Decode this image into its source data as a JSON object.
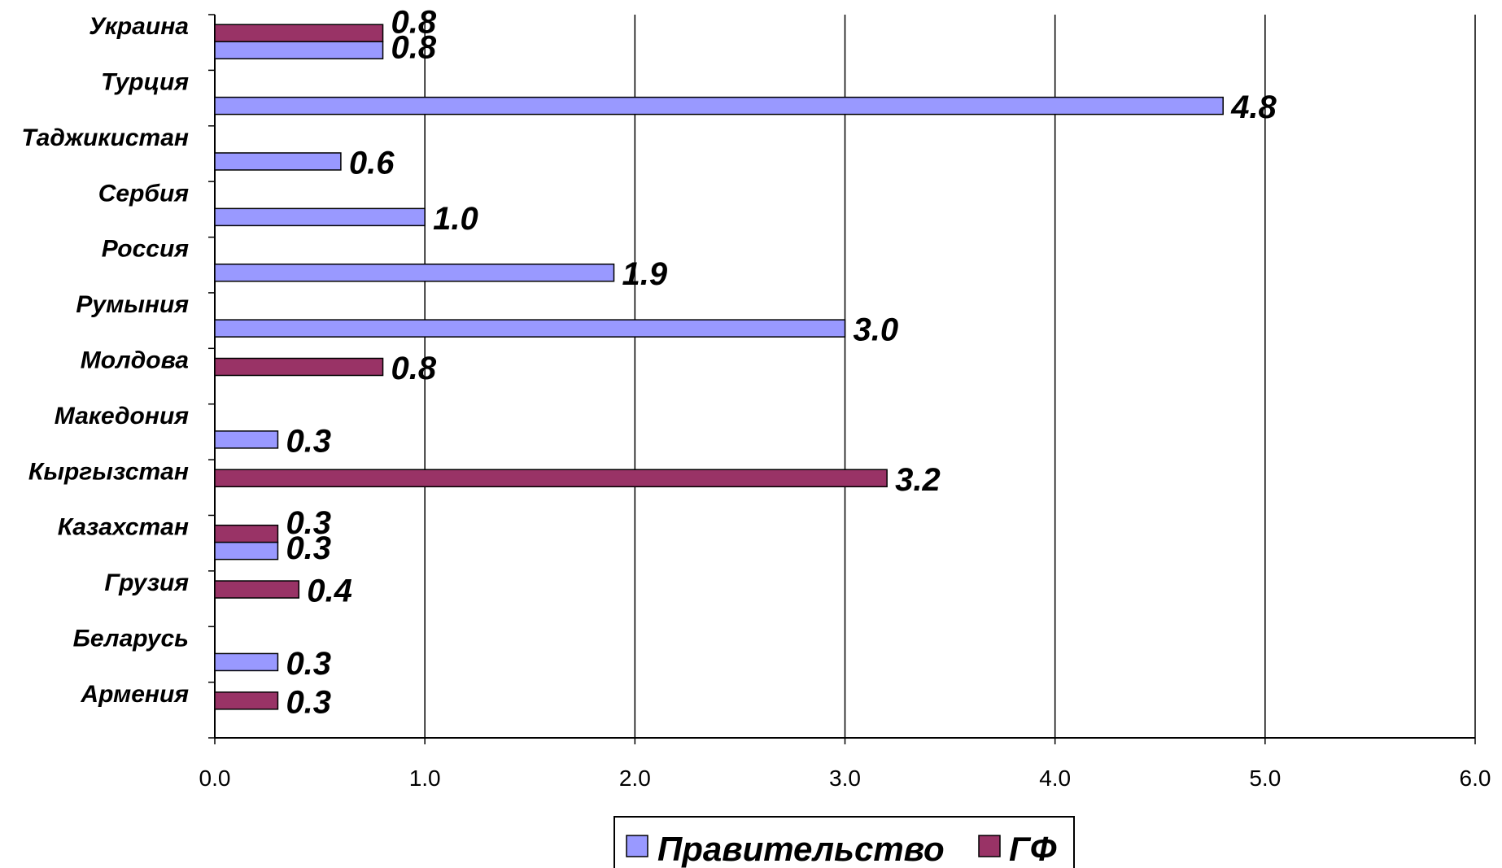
{
  "chart_data": {
    "type": "bar",
    "orientation": "horizontal",
    "categories": [
      "Армения",
      "Беларусь",
      "Грузия",
      "Казахстан",
      "Кыргызстан",
      "Македония",
      "Молдова",
      "Румыния",
      "Россия",
      "Сербия",
      "Таджикистан",
      "Турция",
      "Украина"
    ],
    "series": [
      {
        "name": "Правительство",
        "color": "#9999ff",
        "values": [
          null,
          0.3,
          null,
          0.3,
          null,
          0.3,
          null,
          3.0,
          1.9,
          1.0,
          0.6,
          4.8,
          0.8
        ]
      },
      {
        "name": "ГФ",
        "color": "#993366",
        "values": [
          0.3,
          null,
          0.4,
          0.3,
          3.2,
          null,
          0.8,
          null,
          null,
          null,
          null,
          null,
          0.8
        ]
      }
    ],
    "xlim": [
      0,
      6
    ],
    "xticks": [
      "0.0",
      "1.0",
      "2.0",
      "3.0",
      "4.0",
      "5.0",
      "6.0"
    ],
    "grid": "vertical",
    "legend_position": "bottom"
  }
}
